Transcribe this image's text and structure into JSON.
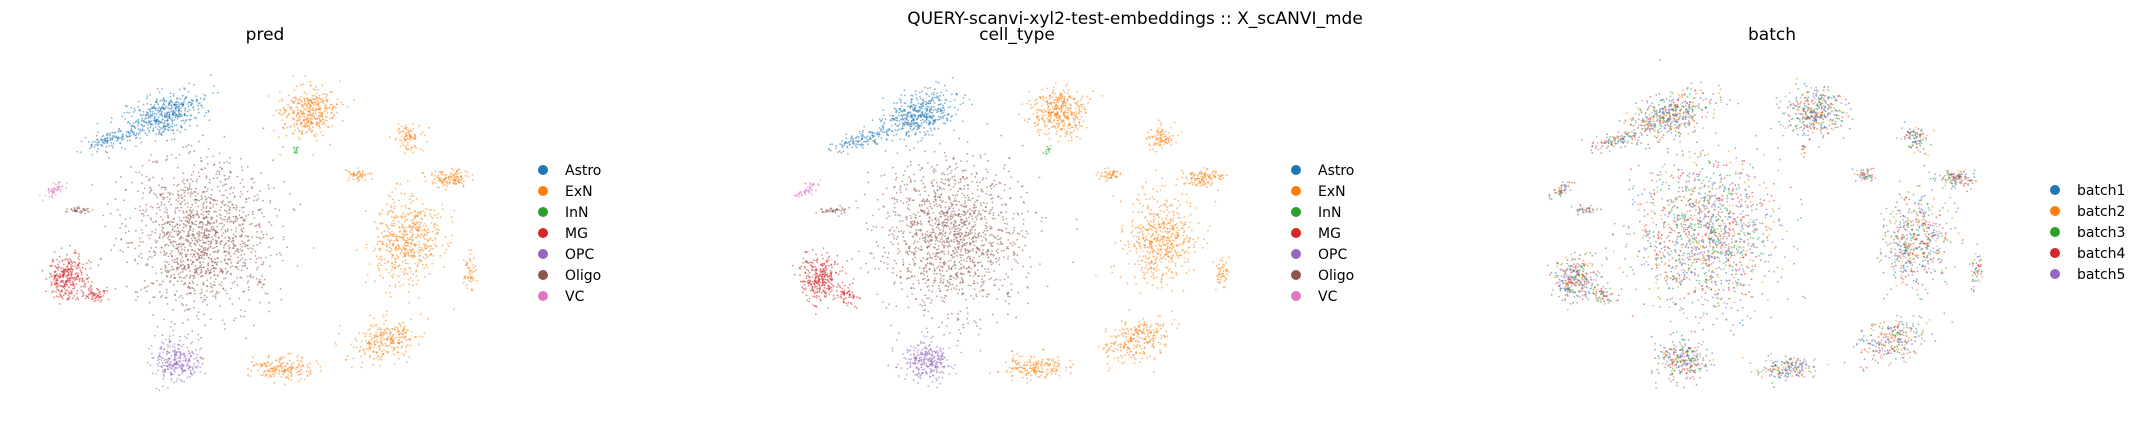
{
  "figure": {
    "suptitle": "QUERY-scanvi-xyl2-test-embeddings :: X_scANVI_mde"
  },
  "colors": {
    "blue": "#1f77b4",
    "orange": "#ff7f0e",
    "green": "#2ca02c",
    "red": "#d62728",
    "purple": "#9467bd",
    "brown": "#8c564b",
    "pink": "#e377c2"
  },
  "chart_data": [
    {
      "type": "scatter",
      "title": "pred",
      "xlabel": "",
      "ylabel": "",
      "grid": false,
      "legend_position": "right",
      "legend": [
        {
          "label": "Astro",
          "color": "#1f77b4"
        },
        {
          "label": "ExN",
          "color": "#ff7f0e"
        },
        {
          "label": "InN",
          "color": "#2ca02c"
        },
        {
          "label": "MG",
          "color": "#d62728"
        },
        {
          "label": "OPC",
          "color": "#9467bd"
        },
        {
          "label": "Oligo",
          "color": "#8c564b"
        },
        {
          "label": "VC",
          "color": "#e377c2"
        }
      ]
    },
    {
      "type": "scatter",
      "title": "cell_type",
      "xlabel": "",
      "ylabel": "",
      "grid": false,
      "legend_position": "right",
      "legend": [
        {
          "label": "Astro",
          "color": "#1f77b4"
        },
        {
          "label": "ExN",
          "color": "#ff7f0e"
        },
        {
          "label": "InN",
          "color": "#2ca02c"
        },
        {
          "label": "MG",
          "color": "#d62728"
        },
        {
          "label": "OPC",
          "color": "#9467bd"
        },
        {
          "label": "Oligo",
          "color": "#8c564b"
        },
        {
          "label": "VC",
          "color": "#e377c2"
        }
      ]
    },
    {
      "type": "scatter",
      "title": "batch",
      "xlabel": "",
      "ylabel": "",
      "grid": false,
      "legend_position": "right",
      "legend": [
        {
          "label": "batch1",
          "color": "#1f77b4"
        },
        {
          "label": "batch2",
          "color": "#ff7f0e"
        },
        {
          "label": "batch3",
          "color": "#2ca02c"
        },
        {
          "label": "batch4",
          "color": "#d62728"
        },
        {
          "label": "batch5",
          "color": "#9467bd"
        }
      ]
    }
  ]
}
